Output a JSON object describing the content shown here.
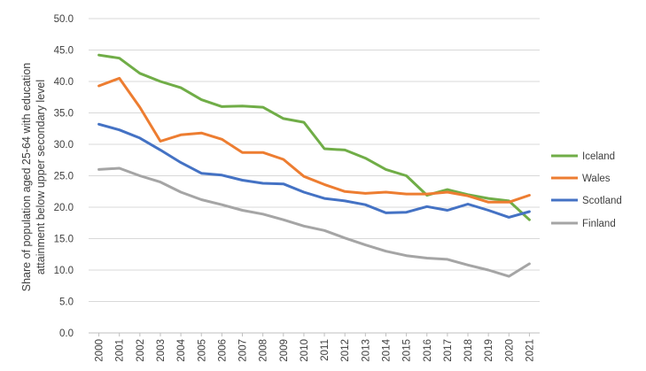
{
  "chart_data": {
    "type": "line",
    "ylabel": "Share of population aged 25-64 with education attainment below upper secondary level",
    "ylabel_lines": [
      "Share of population aged 25-64 with education",
      "attainment below upper secondary level"
    ],
    "xlabel": "",
    "ylim": [
      0,
      50
    ],
    "ytick_labels": [
      "0.0",
      "5.0",
      "10.0",
      "15.0",
      "20.0",
      "25.0",
      "30.0",
      "35.0",
      "40.0",
      "45.0",
      "50.0"
    ],
    "categories": [
      "2000",
      "2001",
      "2002",
      "2003",
      "2004",
      "2005",
      "2006",
      "2007",
      "2008",
      "2009",
      "2010",
      "2011",
      "2012",
      "2013",
      "2014",
      "2015",
      "2016",
      "2017",
      "2018",
      "2019",
      "2020",
      "2021"
    ],
    "grid": true,
    "legend_position": "right",
    "series": [
      {
        "name": "Iceland",
        "color": "#70AD47",
        "values": [
          44.2,
          43.7,
          41.3,
          40.0,
          39.0,
          37.1,
          36.0,
          36.1,
          35.9,
          34.1,
          33.5,
          29.3,
          29.1,
          27.8,
          26.0,
          25.0,
          21.9,
          22.8,
          22.0,
          21.4,
          21.0,
          18.0
        ]
      },
      {
        "name": "Wales",
        "color": "#ED7D31",
        "values": [
          39.3,
          40.5,
          35.9,
          30.5,
          31.5,
          31.8,
          30.8,
          28.7,
          28.7,
          27.6,
          24.9,
          23.6,
          22.5,
          22.2,
          22.4,
          22.1,
          22.1,
          22.4,
          21.8,
          20.8,
          20.8,
          21.9
        ]
      },
      {
        "name": "Scotland",
        "color": "#4472C4",
        "values": [
          33.2,
          32.3,
          31.0,
          29.1,
          27.1,
          25.4,
          25.1,
          24.3,
          23.8,
          23.7,
          22.4,
          21.4,
          21.0,
          20.4,
          19.1,
          19.2,
          20.1,
          19.5,
          20.5,
          19.5,
          18.4,
          19.3
        ]
      },
      {
        "name": "Finland",
        "color": "#A5A5A5",
        "values": [
          26.0,
          26.2,
          25.0,
          24.0,
          22.4,
          21.2,
          20.4,
          19.5,
          18.9,
          18.0,
          17.0,
          16.3,
          15.1,
          14.0,
          13.0,
          12.3,
          11.9,
          11.7,
          10.8,
          10.0,
          9.0,
          11.0
        ]
      }
    ]
  }
}
